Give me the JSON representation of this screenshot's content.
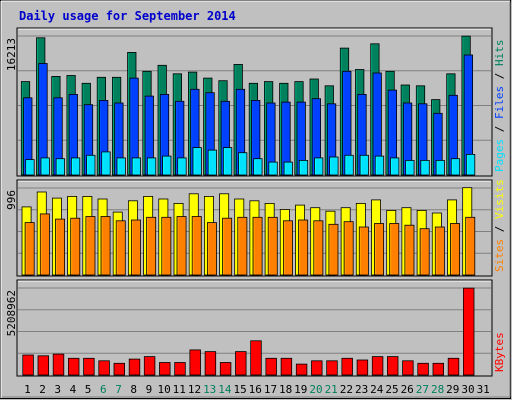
{
  "title": "Daily usage for September 2014",
  "colors": {
    "background": "#c0c0c0",
    "panel": "#c0c0c0",
    "hits": "#00805c",
    "files": "#0040ff",
    "pages": "#00e0ff",
    "visits": "#ffff00",
    "sites": "#ff8000",
    "kbytes": "#ff0000",
    "weekday_label": "#000000",
    "weekend_label": "#00805c"
  },
  "chart_data": [
    {
      "type": "bar",
      "panel": "top",
      "ymax_label": "16213",
      "ylim": [
        0,
        16213
      ],
      "legend_parts": [
        "Pages",
        "Files",
        "Hits"
      ],
      "legend_separator": " / ",
      "categories": [
        "1",
        "2",
        "3",
        "4",
        "5",
        "6",
        "7",
        "8",
        "9",
        "10",
        "11",
        "12",
        "13",
        "14",
        "15",
        "16",
        "17",
        "18",
        "19",
        "20",
        "21",
        "22",
        "23",
        "24",
        "25",
        "26",
        "27",
        "28",
        "29",
        "30"
      ],
      "series": [
        {
          "name": "Hits",
          "values": [
            10900,
            16000,
            11500,
            11600,
            10700,
            11400,
            11400,
            14300,
            12100,
            12800,
            11800,
            12000,
            11300,
            11000,
            12900,
            10700,
            10900,
            10700,
            10900,
            11200,
            10400,
            14800,
            12300,
            15300,
            12100,
            10500,
            10400,
            8800,
            11800,
            16200
          ]
        },
        {
          "name": "Files",
          "values": [
            9000,
            13000,
            9000,
            9400,
            8200,
            8700,
            8400,
            11300,
            9200,
            9400,
            8600,
            10000,
            9600,
            8600,
            10000,
            8700,
            8400,
            8500,
            8500,
            8900,
            8300,
            12100,
            9400,
            11900,
            9900,
            8400,
            8300,
            7200,
            9300,
            14000
          ]
        },
        {
          "name": "Pages",
          "values": [
            1800,
            2000,
            1900,
            2000,
            2300,
            2700,
            2000,
            2000,
            2000,
            2200,
            2000,
            3200,
            2900,
            3200,
            2600,
            1900,
            1500,
            1500,
            1700,
            2000,
            2100,
            2300,
            2300,
            2200,
            2000,
            1700,
            1700,
            1700,
            1900,
            2400
          ]
        }
      ]
    },
    {
      "type": "bar",
      "panel": "middle",
      "ymax_label": "996",
      "ylim": [
        0,
        996
      ],
      "legend_parts": [
        "Sites",
        "Visits"
      ],
      "legend_separator": " / ",
      "categories": [
        "1",
        "2",
        "3",
        "4",
        "5",
        "6",
        "7",
        "8",
        "9",
        "10",
        "11",
        "12",
        "13",
        "14",
        "15",
        "16",
        "17",
        "18",
        "19",
        "20",
        "21",
        "22",
        "23",
        "24",
        "25",
        "26",
        "27",
        "28",
        "29",
        "30"
      ],
      "series": [
        {
          "name": "Visits",
          "values": [
            780,
            950,
            880,
            900,
            900,
            870,
            720,
            850,
            900,
            870,
            820,
            930,
            900,
            930,
            870,
            850,
            820,
            750,
            800,
            770,
            730,
            770,
            820,
            860,
            740,
            770,
            740,
            710,
            860,
            1000
          ]
        },
        {
          "name": "Sites",
          "values": [
            600,
            700,
            640,
            650,
            670,
            670,
            620,
            630,
            660,
            660,
            670,
            670,
            600,
            650,
            660,
            660,
            660,
            620,
            630,
            620,
            580,
            610,
            550,
            590,
            590,
            570,
            530,
            550,
            590,
            660
          ]
        }
      ]
    },
    {
      "type": "bar",
      "panel": "bottom",
      "ymax_label": "5208962",
      "ylim": [
        0,
        5208962
      ],
      "legend_parts": [
        "KBytes"
      ],
      "legend_separator": "",
      "categories": [
        "1",
        "2",
        "3",
        "4",
        "5",
        "6",
        "7",
        "8",
        "9",
        "10",
        "11",
        "12",
        "13",
        "14",
        "15",
        "16",
        "17",
        "18",
        "19",
        "20",
        "21",
        "22",
        "23",
        "24",
        "25",
        "26",
        "27",
        "28",
        "29",
        "30"
      ],
      "series": [
        {
          "name": "KBytes",
          "values": [
            1200000,
            1150000,
            1250000,
            1000000,
            1000000,
            850000,
            700000,
            950000,
            1100000,
            750000,
            750000,
            1500000,
            1400000,
            750000,
            1400000,
            2050000,
            1000000,
            1000000,
            650000,
            850000,
            850000,
            1000000,
            900000,
            1100000,
            1100000,
            850000,
            700000,
            700000,
            1000000,
            5200000
          ]
        }
      ]
    }
  ],
  "x_axis": {
    "labels": [
      "1",
      "2",
      "3",
      "4",
      "5",
      "6",
      "7",
      "8",
      "9",
      "10",
      "11",
      "12",
      "13",
      "14",
      "15",
      "16",
      "17",
      "18",
      "19",
      "20",
      "21",
      "22",
      "23",
      "24",
      "25",
      "26",
      "27",
      "28",
      "29",
      "30",
      "31"
    ],
    "weekend": [
      "6",
      "7",
      "13",
      "14",
      "20",
      "21",
      "27",
      "28"
    ]
  }
}
